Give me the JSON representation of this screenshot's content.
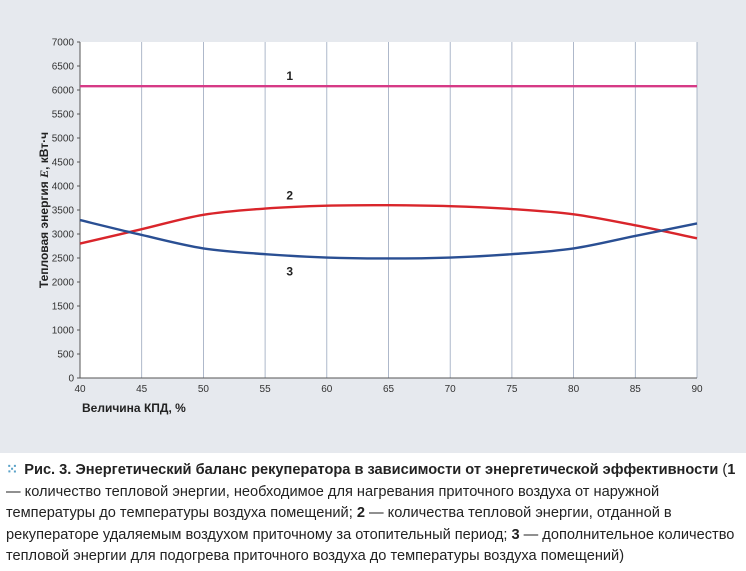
{
  "chart_data": {
    "type": "line",
    "ylabel_prefix": "Тепловая энергия ",
    "ylabel_var": "E",
    "ylabel_suffix": ", кВт·ч",
    "xlabel": "Величина КПД, %",
    "xlim": [
      40,
      90
    ],
    "ylim": [
      0,
      7000
    ],
    "xticks": [
      40,
      45,
      50,
      55,
      60,
      65,
      70,
      75,
      80,
      85,
      90
    ],
    "yticks": [
      0,
      500,
      1000,
      1500,
      2000,
      2500,
      3000,
      3500,
      4000,
      4500,
      5000,
      5500,
      6000,
      6500,
      7000
    ],
    "grid": "vertical",
    "series": [
      {
        "name": "1",
        "color": "#d63a86",
        "x": [
          40,
          50,
          60,
          70,
          80,
          90
        ],
        "values": [
          6080,
          6080,
          6080,
          6080,
          6080,
          6080
        ],
        "label_at": [
          57,
          6080
        ]
      },
      {
        "name": "2",
        "color": "#d9252b",
        "x": [
          40,
          45,
          50,
          55,
          60,
          65,
          70,
          75,
          80,
          85,
          90
        ],
        "values": [
          2800,
          3100,
          3400,
          3530,
          3590,
          3600,
          3580,
          3520,
          3410,
          3180,
          2910
        ],
        "label_at": [
          57,
          3590
        ]
      },
      {
        "name": "3",
        "color": "#2a4f93",
        "x": [
          40,
          45,
          50,
          55,
          60,
          65,
          70,
          75,
          80,
          85,
          90
        ],
        "values": [
          3290,
          2980,
          2700,
          2580,
          2510,
          2490,
          2510,
          2580,
          2700,
          2960,
          3220
        ],
        "label_at": [
          57,
          2510
        ]
      }
    ]
  },
  "caption": {
    "fig_label": "Рис. 3.",
    "title": "Энергетический баланс рекуператора в зависимости от энергетической эффективности",
    "open": " (",
    "n1": "1",
    "t1": " — количество тепловой энергии, необходимое для нагревания приточного воздуха от наружной температуры до температуры воздуха помещений; ",
    "n2": "2",
    "t2": " — количества тепловой энергии, отданной в рекуператоре удаляемым воздухом приточному за отопительный период; ",
    "n3": "3",
    "t3": " — дополнительное количество тепловой энергии для подогрева приточного воздуха до температуры воздуха помещений)"
  }
}
